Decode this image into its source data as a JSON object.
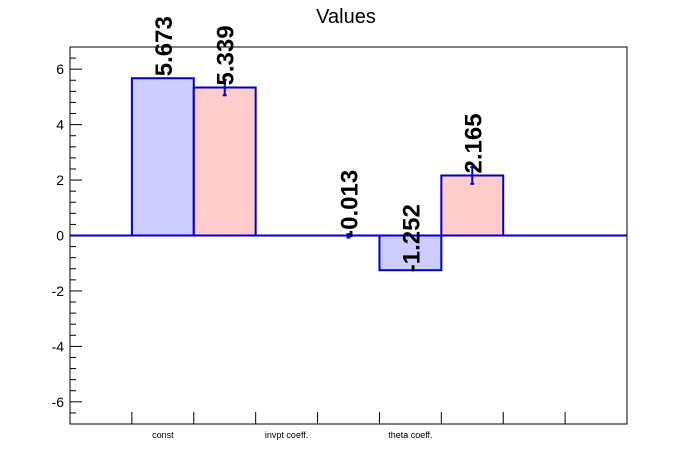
{
  "chart_data": {
    "type": "bar",
    "title": "Values",
    "xlabel": "",
    "ylabel": "",
    "ylim": [
      -6.8,
      6.8
    ],
    "yticks": [
      -6,
      -4,
      -2,
      0,
      2,
      4,
      6
    ],
    "categories": [
      "const",
      "invpt coeff.",
      "theta coeff."
    ],
    "series": [
      {
        "color": "#ccccff",
        "edge_color": "#0000cc",
        "values": [
          5.673,
          0,
          -1.252
        ],
        "labels": [
          "5.673",
          "",
          "-1.252"
        ]
      },
      {
        "color": "#ffcccc",
        "edge_color": "#0000cc",
        "values": [
          5.339,
          -0.013,
          2.165
        ],
        "errors": [
          0.28,
          0.06,
          0.3
        ],
        "labels": [
          "5.339",
          "-0.013",
          "2.165"
        ]
      }
    ],
    "grid": false,
    "legend": "none"
  }
}
